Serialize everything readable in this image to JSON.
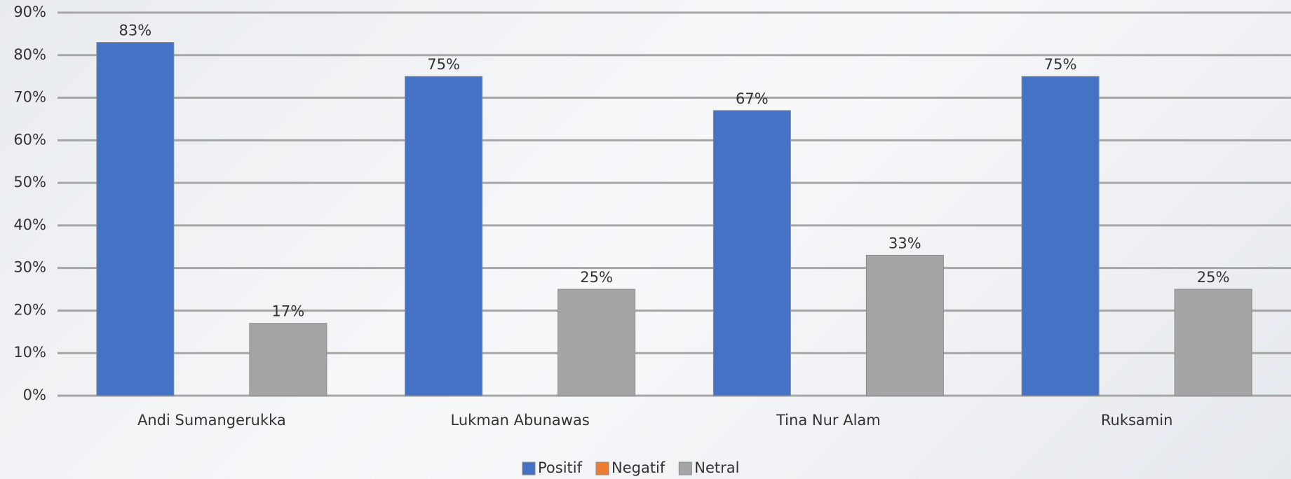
{
  "chart_data": {
    "type": "bar",
    "categories": [
      "Andi Sumangerukka",
      "Lukman Abunawas",
      "Tina Nur Alam",
      "Ruksamin"
    ],
    "series": [
      {
        "name": "Positif",
        "color": "#4472c4",
        "values": [
          83,
          75,
          67,
          75
        ],
        "value_labels": [
          "83%",
          "75%",
          "67%",
          "75%"
        ]
      },
      {
        "name": "Negatif",
        "color": "#ed7d31",
        "values": [
          0,
          0,
          0,
          0
        ]
      },
      {
        "name": "Netral",
        "color": "#a5a5a5",
        "values": [
          17,
          25,
          33,
          25
        ],
        "value_labels": [
          "17%",
          "25%",
          "33%",
          "25%"
        ]
      }
    ],
    "ylim": [
      0,
      90
    ],
    "yticks": [
      {
        "value": 0,
        "label": "0%"
      },
      {
        "value": 10,
        "label": "10%"
      },
      {
        "value": 20,
        "label": "20%"
      },
      {
        "value": 30,
        "label": "30%"
      },
      {
        "value": 40,
        "label": "40%"
      },
      {
        "value": 50,
        "label": "50%"
      },
      {
        "value": 60,
        "label": "60%"
      },
      {
        "value": 70,
        "label": "70%"
      },
      {
        "value": 80,
        "label": "80%"
      },
      {
        "value": 90,
        "label": "90%"
      }
    ],
    "grid": true,
    "legend": "bottom"
  }
}
